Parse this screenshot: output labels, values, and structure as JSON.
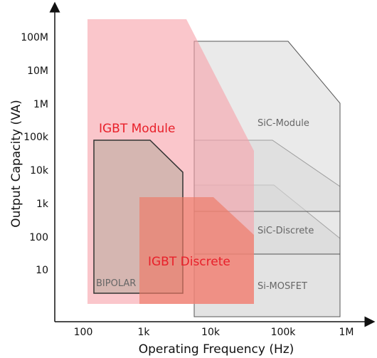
{
  "axes": {
    "x_title": "Operating Frequency (Hz)",
    "y_title": "Output Capacity (VA)",
    "x_ticks": [
      "100",
      "1k",
      "10k",
      "100k",
      "1M"
    ],
    "y_ticks": [
      "100M",
      "10M",
      "1M",
      "100k",
      "10k",
      "1k",
      "100",
      "10"
    ],
    "x_scale": "log",
    "y_scale": "log"
  },
  "regions": {
    "igbt_module": {
      "label": "IGBT Module",
      "color": "#f7a0a8"
    },
    "igbt_discrete": {
      "label": "IGBT Discrete",
      "color": "#f08a7a"
    },
    "bipolar": {
      "label": "BIPOLAR",
      "color": "#c8b0a8"
    },
    "sic_module": {
      "label": "SiC-Module",
      "color": "#d9d9d9"
    },
    "sic_discrete": {
      "label": "SiC-Discrete",
      "color": "#d9d9d9"
    },
    "si_mosfet": {
      "label": "Si-MOSFET",
      "color": "#d9d9d9"
    }
  },
  "colors": {
    "axis": "#111111",
    "region_outline": "#555555",
    "label_red": "#e8202a",
    "label_grey": "#666666"
  }
}
